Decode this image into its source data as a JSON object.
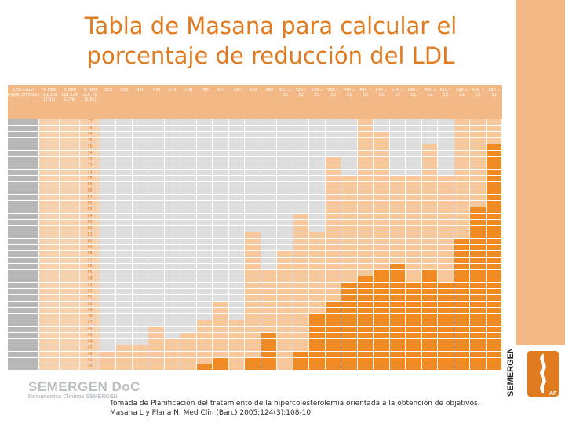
{
  "slide": {
    "title_line1": "Tabla de Masana para calcular el",
    "title_line2": "porcentaje de reducción del LDL",
    "caption": "Tomada de Planificación del tratamiento de la hipercolesterolemia orientada a la obtención de objetivos. Masana L y Plana N. Med Clin (Barc) 2005;124(3):108-10",
    "brand": "SEMERGEN DoC",
    "brand_sub": "Documentos Clínicos SEMERGEN",
    "side_logo_text": "SEMERGEN",
    "side_logo_sub": "AP",
    "colors": {
      "title": "#e07b20",
      "header": "#f2b987",
      "first_col": "#b7b7b7",
      "pct_col": "#f7d0ad",
      "cell_gray": "#dedede",
      "cell_light": "#f8c79b",
      "cell_mid": "#f3a35f",
      "cell_dark": "#f08a22",
      "grid": "#ffffff"
    }
  },
  "table": {
    "header_cols": [
      "LDL inicial mg/dL (mmol/L)",
      "% RED LDL 100 (2.59)",
      "% RED LDL 100 (2.59)",
      "% RED LDL 70 (1.81)",
      "S10",
      "S20",
      "S40",
      "P40",
      "L40",
      "L80",
      "F80",
      "A10",
      "A20",
      "A40",
      "A80",
      "S10 + EZ",
      "S20 + EZ",
      "S40 + EZ",
      "S80 + EZ",
      "P40 + EZ",
      "P40 + EZ",
      "L40 + EZ",
      "L40 + EZ",
      "L80 + EZ",
      "F80 + EZ",
      "A10 + EZ",
      "A20 + EZ",
      "A40 + EZ",
      "A80 + EZ"
    ],
    "col3_values": [
      "77",
      "76",
      "74",
      "75",
      "76",
      "74",
      "73",
      "72",
      "71",
      "70",
      "69",
      "68",
      "67",
      "66",
      "65",
      "64",
      "63",
      "62",
      "61",
      "60",
      "59",
      "58",
      "57",
      "56",
      "55",
      "54",
      "53",
      "52",
      "51",
      "50",
      "49",
      "48",
      "47",
      "46",
      "45",
      "44",
      "43",
      "42",
      "41",
      "40"
    ],
    "levels": [
      [
        0,
        0,
        0,
        0,
        0,
        0,
        0,
        0,
        0,
        0,
        0,
        0,
        0,
        0,
        0,
        0,
        1,
        0,
        0,
        0,
        0,
        0,
        1,
        1,
        1
      ],
      [
        0,
        0,
        0,
        0,
        0,
        0,
        0,
        0,
        0,
        0,
        0,
        0,
        0,
        0,
        0,
        0,
        1,
        0,
        0,
        0,
        0,
        0,
        1,
        1,
        1
      ],
      [
        0,
        0,
        0,
        0,
        0,
        0,
        0,
        0,
        0,
        0,
        0,
        0,
        0,
        0,
        0,
        0,
        1,
        1,
        0,
        0,
        0,
        0,
        1,
        1,
        1
      ],
      [
        0,
        0,
        0,
        0,
        0,
        0,
        0,
        0,
        0,
        0,
        0,
        0,
        0,
        0,
        0,
        0,
        1,
        1,
        0,
        0,
        0,
        0,
        1,
        1,
        1
      ],
      [
        0,
        0,
        0,
        0,
        0,
        0,
        0,
        0,
        0,
        0,
        0,
        0,
        0,
        0,
        0,
        0,
        1,
        1,
        0,
        0,
        1,
        0,
        1,
        1,
        2
      ],
      [
        0,
        0,
        0,
        0,
        0,
        0,
        0,
        0,
        0,
        0,
        0,
        0,
        0,
        0,
        0,
        0,
        1,
        1,
        0,
        0,
        1,
        0,
        1,
        1,
        2
      ],
      [
        0,
        0,
        0,
        0,
        0,
        0,
        0,
        0,
        0,
        0,
        0,
        0,
        0,
        0,
        1,
        0,
        1,
        1,
        0,
        0,
        1,
        0,
        1,
        1,
        2
      ],
      [
        0,
        0,
        0,
        0,
        0,
        0,
        0,
        0,
        0,
        0,
        0,
        0,
        0,
        0,
        1,
        0,
        1,
        1,
        0,
        0,
        1,
        0,
        1,
        1,
        2
      ],
      [
        0,
        0,
        0,
        0,
        0,
        0,
        0,
        0,
        0,
        0,
        0,
        0,
        0,
        0,
        1,
        0,
        1,
        1,
        0,
        0,
        1,
        0,
        1,
        1,
        2
      ],
      [
        0,
        0,
        0,
        0,
        0,
        0,
        0,
        0,
        0,
        0,
        0,
        0,
        0,
        0,
        1,
        1,
        1,
        1,
        1,
        1,
        1,
        1,
        1,
        1,
        2
      ],
      [
        0,
        0,
        0,
        0,
        0,
        0,
        0,
        0,
        0,
        0,
        0,
        0,
        0,
        0,
        1,
        1,
        1,
        1,
        1,
        1,
        1,
        1,
        1,
        1,
        2
      ],
      [
        0,
        0,
        0,
        0,
        0,
        0,
        0,
        0,
        0,
        0,
        0,
        0,
        0,
        0,
        1,
        1,
        1,
        1,
        1,
        1,
        1,
        1,
        1,
        1,
        2
      ],
      [
        0,
        0,
        0,
        0,
        0,
        0,
        0,
        0,
        0,
        0,
        0,
        0,
        0,
        0,
        1,
        1,
        1,
        1,
        1,
        1,
        1,
        1,
        1,
        1,
        2
      ],
      [
        0,
        0,
        0,
        0,
        0,
        0,
        0,
        0,
        0,
        0,
        0,
        0,
        0,
        0,
        1,
        1,
        1,
        1,
        1,
        1,
        1,
        1,
        1,
        1,
        2
      ],
      [
        0,
        0,
        0,
        0,
        0,
        0,
        0,
        0,
        0,
        0,
        0,
        0,
        0,
        0,
        1,
        1,
        1,
        1,
        1,
        1,
        1,
        1,
        1,
        2,
        2
      ],
      [
        0,
        0,
        0,
        0,
        0,
        0,
        0,
        0,
        0,
        0,
        0,
        0,
        1,
        0,
        1,
        1,
        1,
        1,
        1,
        1,
        1,
        1,
        1,
        2,
        2
      ],
      [
        0,
        0,
        0,
        0,
        0,
        0,
        0,
        0,
        0,
        0,
        0,
        0,
        1,
        0,
        1,
        1,
        1,
        1,
        1,
        1,
        1,
        1,
        1,
        2,
        2
      ],
      [
        0,
        0,
        0,
        0,
        0,
        0,
        0,
        0,
        0,
        0,
        0,
        0,
        1,
        0,
        1,
        1,
        1,
        1,
        1,
        1,
        1,
        1,
        1,
        2,
        2
      ],
      [
        0,
        0,
        0,
        0,
        0,
        0,
        0,
        0,
        0,
        1,
        0,
        0,
        1,
        1,
        1,
        1,
        1,
        1,
        1,
        1,
        1,
        1,
        1,
        2,
        2
      ],
      [
        0,
        0,
        0,
        0,
        0,
        0,
        0,
        0,
        0,
        1,
        0,
        0,
        1,
        1,
        1,
        1,
        1,
        1,
        1,
        1,
        1,
        1,
        2,
        2,
        2
      ],
      [
        0,
        0,
        0,
        0,
        0,
        0,
        0,
        0,
        0,
        1,
        0,
        0,
        1,
        1,
        1,
        1,
        1,
        1,
        1,
        1,
        1,
        1,
        2,
        2,
        2
      ],
      [
        0,
        0,
        0,
        0,
        0,
        0,
        0,
        0,
        0,
        1,
        0,
        1,
        1,
        1,
        1,
        1,
        1,
        1,
        1,
        1,
        1,
        1,
        2,
        2,
        2
      ],
      [
        0,
        0,
        0,
        0,
        0,
        0,
        0,
        0,
        0,
        1,
        0,
        1,
        1,
        1,
        1,
        1,
        1,
        1,
        1,
        1,
        1,
        1,
        2,
        2,
        2
      ],
      [
        0,
        0,
        0,
        0,
        0,
        0,
        0,
        0,
        0,
        1,
        0,
        1,
        1,
        1,
        1,
        1,
        1,
        1,
        2,
        1,
        1,
        1,
        2,
        2,
        2
      ],
      [
        0,
        0,
        0,
        0,
        0,
        0,
        0,
        0,
        0,
        1,
        1,
        1,
        1,
        1,
        1,
        1,
        1,
        2,
        2,
        1,
        2,
        1,
        2,
        2,
        2
      ],
      [
        0,
        0,
        0,
        0,
        0,
        0,
        0,
        0,
        0,
        1,
        1,
        1,
        1,
        1,
        1,
        1,
        2,
        2,
        2,
        1,
        2,
        1,
        2,
        2,
        2
      ],
      [
        0,
        0,
        0,
        0,
        0,
        0,
        0,
        0,
        0,
        1,
        1,
        1,
        1,
        1,
        1,
        2,
        2,
        2,
        2,
        2,
        2,
        2,
        2,
        2,
        2
      ],
      [
        0,
        0,
        0,
        0,
        0,
        0,
        0,
        0,
        0,
        1,
        1,
        1,
        1,
        1,
        1,
        2,
        2,
        2,
        2,
        2,
        2,
        2,
        2,
        2,
        2
      ],
      [
        0,
        0,
        0,
        0,
        0,
        0,
        0,
        0,
        0,
        1,
        1,
        1,
        1,
        1,
        1,
        2,
        2,
        2,
        2,
        2,
        2,
        2,
        2,
        2,
        2
      ],
      [
        0,
        0,
        0,
        0,
        0,
        0,
        0,
        1,
        0,
        1,
        1,
        1,
        1,
        1,
        2,
        2,
        2,
        2,
        2,
        2,
        2,
        2,
        2,
        2,
        2
      ],
      [
        0,
        0,
        0,
        0,
        0,
        0,
        0,
        1,
        0,
        1,
        1,
        1,
        1,
        1,
        2,
        2,
        2,
        2,
        2,
        2,
        2,
        2,
        2,
        2,
        2
      ],
      [
        0,
        0,
        0,
        0,
        0,
        0,
        0,
        1,
        0,
        1,
        1,
        1,
        1,
        2,
        2,
        2,
        2,
        2,
        2,
        2,
        2,
        2,
        2,
        2,
        2
      ],
      [
        0,
        0,
        0,
        0,
        0,
        0,
        1,
        1,
        1,
        1,
        1,
        1,
        1,
        2,
        2,
        2,
        2,
        2,
        2,
        2,
        2,
        2,
        2,
        2,
        2
      ],
      [
        0,
        0,
        0,
        1,
        0,
        0,
        1,
        1,
        1,
        1,
        1,
        1,
        1,
        2,
        2,
        2,
        2,
        2,
        2,
        2,
        2,
        2,
        2,
        2,
        2
      ],
      [
        0,
        0,
        0,
        1,
        0,
        1,
        1,
        1,
        1,
        1,
        2,
        1,
        1,
        2,
        2,
        2,
        2,
        2,
        2,
        2,
        2,
        2,
        2,
        2,
        2
      ],
      [
        0,
        0,
        0,
        1,
        1,
        1,
        1,
        1,
        1,
        1,
        2,
        1,
        1,
        2,
        2,
        2,
        2,
        2,
        2,
        2,
        2,
        2,
        2,
        2,
        2
      ],
      [
        0,
        1,
        1,
        1,
        1,
        1,
        1,
        1,
        1,
        1,
        2,
        1,
        1,
        2,
        2,
        2,
        2,
        2,
        2,
        2,
        2,
        2,
        2,
        2,
        2
      ],
      [
        1,
        1,
        1,
        1,
        1,
        1,
        1,
        1,
        1,
        1,
        2,
        1,
        2,
        2,
        2,
        2,
        2,
        2,
        2,
        2,
        2,
        2,
        2,
        2,
        2
      ],
      [
        1,
        1,
        1,
        1,
        1,
        1,
        1,
        2,
        1,
        2,
        2,
        1,
        2,
        2,
        2,
        2,
        2,
        2,
        2,
        2,
        2,
        2,
        2,
        2,
        2
      ],
      [
        1,
        1,
        1,
        1,
        1,
        1,
        2,
        2,
        1,
        2,
        2,
        1,
        2,
        2,
        2,
        2,
        2,
        2,
        2,
        2,
        2,
        2,
        2,
        2,
        2
      ]
    ]
  }
}
